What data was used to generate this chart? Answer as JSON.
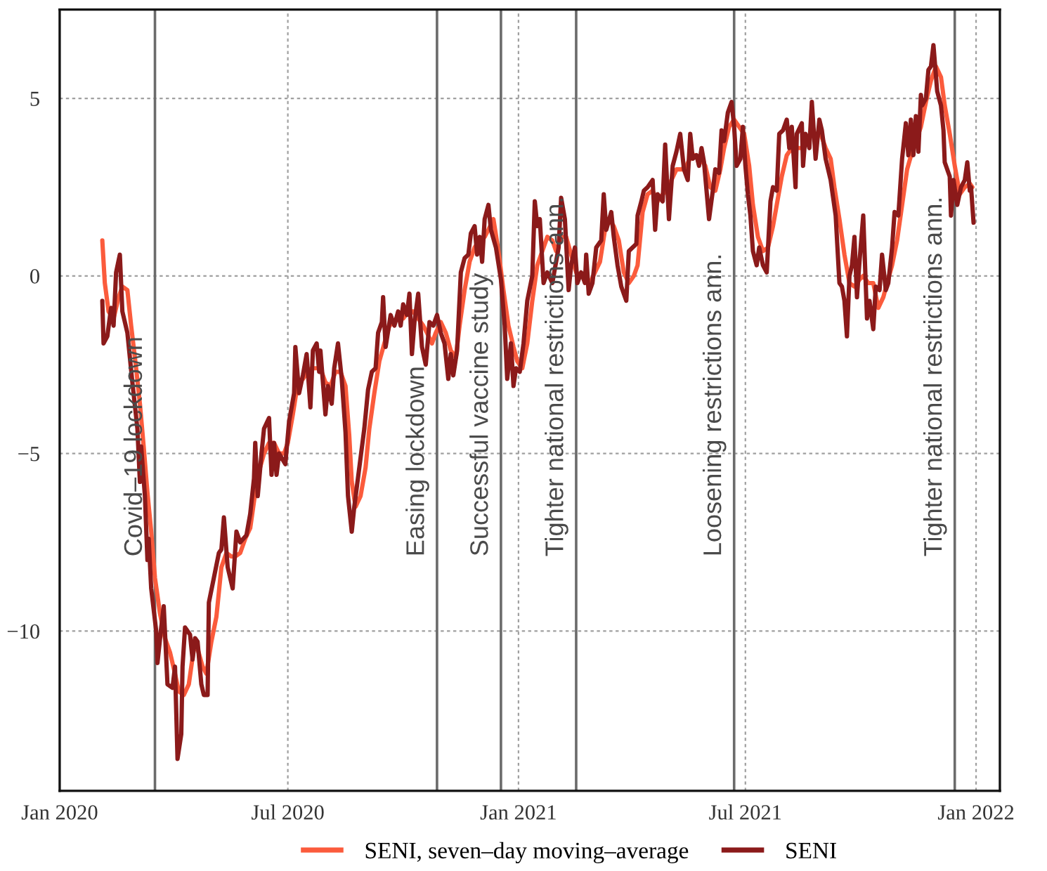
{
  "chart_data": {
    "type": "line",
    "xlim": [
      "2020-01-01",
      "2022-01-20"
    ],
    "xticks": [
      {
        "value": "2020-01-01",
        "label": "Jan 2020"
      },
      {
        "value": "2020-07-01",
        "label": "Jul 2020"
      },
      {
        "value": "2021-01-01",
        "label": "Jan 2021"
      },
      {
        "value": "2021-07-01",
        "label": "Jul 2021"
      },
      {
        "value": "2022-01-01",
        "label": "Jan 2022"
      }
    ],
    "ylim": [
      -14.5,
      7.5
    ],
    "yticks": [
      {
        "value": -10,
        "label": "−10"
      },
      {
        "value": -5,
        "label": "−5"
      },
      0,
      5
    ],
    "grid": true,
    "legend": "bottom",
    "ref_lines": [
      {
        "axis": "x",
        "value": "2020-03-17",
        "label": "Covid–19 lockdown",
        "color": "#6b6b6b"
      },
      {
        "axis": "x",
        "value": "2020-10-28",
        "label": "Easing lockdown",
        "color": "#6b6b6b"
      },
      {
        "axis": "x",
        "value": "2020-12-18",
        "label": "Successful vaccine study",
        "color": "#6b6b6b"
      },
      {
        "axis": "x",
        "value": "2021-02-16",
        "label": "Tighter national restrictions ann.",
        "color": "#6b6b6b"
      },
      {
        "axis": "x",
        "value": "2021-06-22",
        "label": "Loosening restrictions ann.",
        "color": "#6b6b6b"
      },
      {
        "axis": "x",
        "value": "2021-12-15",
        "label": "Tighter national restrictions ann.",
        "color": "#6b6b6b"
      }
    ],
    "series": [
      {
        "name": "SENI, seven–day moving–average",
        "color": "#fb5b3c",
        "x": [
          "2020-02-04",
          "2020-02-06",
          "2020-02-09",
          "2020-02-13",
          "2020-02-17",
          "2020-02-20",
          "2020-02-24",
          "2020-02-27",
          "2020-03-02",
          "2020-03-05",
          "2020-03-08",
          "2020-03-11",
          "2020-03-14",
          "2020-03-17",
          "2020-03-21",
          "2020-03-25",
          "2020-03-29",
          "2020-04-02",
          "2020-04-05",
          "2020-04-09",
          "2020-04-13",
          "2020-04-17",
          "2020-04-20",
          "2020-04-24",
          "2020-04-27",
          "2020-05-01",
          "2020-05-05",
          "2020-05-09",
          "2020-05-13",
          "2020-05-17",
          "2020-05-20",
          "2020-05-24",
          "2020-05-28",
          "2020-06-01",
          "2020-06-05",
          "2020-06-08",
          "2020-06-12",
          "2020-06-16",
          "2020-06-20",
          "2020-06-24",
          "2020-06-28",
          "2020-07-01",
          "2020-07-05",
          "2020-07-09",
          "2020-07-13",
          "2020-07-17",
          "2020-07-20",
          "2020-07-24",
          "2020-07-27",
          "2020-07-31",
          "2020-08-04",
          "2020-08-08",
          "2020-08-12",
          "2020-08-16",
          "2020-08-19",
          "2020-08-21",
          "2020-08-24",
          "2020-08-28",
          "2020-09-01",
          "2020-09-04",
          "2020-09-08",
          "2020-09-12",
          "2020-09-16",
          "2020-09-20",
          "2020-09-24",
          "2020-09-27",
          "2020-10-01",
          "2020-10-05",
          "2020-10-09",
          "2020-10-13",
          "2020-10-17",
          "2020-10-20",
          "2020-10-24",
          "2020-10-27",
          "2020-10-31",
          "2020-11-04",
          "2020-11-08",
          "2020-11-12",
          "2020-11-15",
          "2020-11-19",
          "2020-11-23",
          "2020-11-27",
          "2020-12-01",
          "2020-12-05",
          "2020-12-08",
          "2020-12-12",
          "2020-12-16",
          "2020-12-20",
          "2020-12-24",
          "2020-12-28",
          "2020-12-31",
          "2021-01-04",
          "2021-01-08",
          "2021-01-12",
          "2021-01-16",
          "2021-01-20",
          "2021-01-24",
          "2021-01-28",
          "2021-01-31",
          "2021-02-04",
          "2021-02-08",
          "2021-02-12",
          "2021-02-16",
          "2021-02-20",
          "2021-02-23",
          "2021-02-27",
          "2021-03-03",
          "2021-03-07",
          "2021-03-11",
          "2021-03-14",
          "2021-03-18",
          "2021-03-22",
          "2021-03-26",
          "2021-03-30",
          "2021-04-03",
          "2021-04-06",
          "2021-04-10",
          "2021-04-14",
          "2021-04-18",
          "2021-04-22",
          "2021-04-26",
          "2021-04-29",
          "2021-05-03",
          "2021-05-07",
          "2021-05-11",
          "2021-05-15",
          "2021-05-19",
          "2021-05-22",
          "2021-05-26",
          "2021-05-30",
          "2021-06-03",
          "2021-06-07",
          "2021-06-11",
          "2021-06-14",
          "2021-06-18",
          "2021-06-22",
          "2021-06-26",
          "2021-06-30",
          "2021-07-04",
          "2021-07-07",
          "2021-07-11",
          "2021-07-15",
          "2021-07-19",
          "2021-07-23",
          "2021-07-26",
          "2021-07-30",
          "2021-08-03",
          "2021-08-07",
          "2021-08-11",
          "2021-08-15",
          "2021-08-18",
          "2021-08-22",
          "2021-08-26",
          "2021-08-30",
          "2021-09-03",
          "2021-09-07",
          "2021-09-10",
          "2021-09-14",
          "2021-09-18",
          "2021-09-22",
          "2021-09-26",
          "2021-09-30",
          "2021-10-03",
          "2021-10-07",
          "2021-10-11",
          "2021-10-15",
          "2021-10-19",
          "2021-10-22",
          "2021-10-26",
          "2021-10-30",
          "2021-11-03",
          "2021-11-07",
          "2021-11-11",
          "2021-11-14",
          "2021-11-18",
          "2021-11-22",
          "2021-11-26",
          "2021-11-30",
          "2021-12-04",
          "2021-12-07",
          "2021-12-11",
          "2021-12-15",
          "2021-12-19",
          "2021-12-23",
          "2021-12-27",
          "2021-12-29"
        ],
        "values": [
          1.0,
          -0.2,
          -1.0,
          -1.2,
          -0.6,
          -0.3,
          -0.4,
          -1.4,
          -2.6,
          -3.6,
          -4.8,
          -6.1,
          -7.2,
          -8.5,
          -9.5,
          -10.2,
          -10.6,
          -11.2,
          -11.7,
          -11.8,
          -11.5,
          -10.5,
          -10.5,
          -11.0,
          -11.2,
          -10.3,
          -9.6,
          -8.2,
          -7.8,
          -7.9,
          -7.9,
          -7.8,
          -7.4,
          -7.1,
          -6.1,
          -5.5,
          -5.0,
          -4.7,
          -4.7,
          -5.0,
          -5.0,
          -4.7,
          -3.9,
          -3.0,
          -2.9,
          -2.7,
          -2.6,
          -2.6,
          -2.6,
          -3.0,
          -3.1,
          -2.7,
          -2.7,
          -3.1,
          -4.5,
          -5.8,
          -6.5,
          -6.2,
          -5.4,
          -4.3,
          -3.3,
          -2.4,
          -1.9,
          -1.4,
          -1.3,
          -1.2,
          -1.2,
          -1.0,
          -1.0,
          -1.2,
          -1.4,
          -1.6,
          -1.9,
          -1.6,
          -1.3,
          -1.6,
          -2.1,
          -2.3,
          -1.4,
          -0.4,
          0.4,
          0.8,
          1.0,
          1.1,
          1.3,
          1.6,
          0.7,
          -0.4,
          -1.4,
          -2.0,
          -2.4,
          -2.6,
          -1.9,
          -0.7,
          0.3,
          0.7,
          1.1,
          1.0,
          0.7,
          1.1,
          1.1,
          0.6,
          0.1,
          0.0,
          0.0,
          -0.2,
          0.1,
          0.4,
          1.3,
          1.6,
          1.4,
          1.0,
          0.1,
          -0.2,
          0.0,
          0.3,
          1.8,
          2.3,
          2.4,
          2.1,
          2.3,
          2.4,
          2.7,
          3.0,
          3.0,
          3.1,
          3.4,
          3.4,
          3.3,
          3.1,
          2.5,
          2.4,
          3.0,
          3.6,
          4.2,
          4.4,
          4.2,
          4.0,
          3.1,
          2.0,
          1.1,
          0.7,
          0.8,
          1.4,
          2.0,
          2.8,
          3.4,
          3.6,
          3.6,
          3.6,
          3.8,
          4.0,
          4.0,
          4.0,
          3.6,
          3.3,
          2.5,
          1.6,
          0.6,
          -0.2,
          -0.3,
          -0.1,
          0.0,
          -0.2,
          -0.2,
          -0.9,
          -0.6,
          -0.2,
          0.3,
          1.0,
          2.0,
          3.0,
          3.5,
          3.8,
          4.2,
          4.9,
          5.5,
          5.9,
          5.6,
          4.8,
          4.0,
          3.1,
          2.3,
          2.5,
          2.6,
          2.5
        ]
      },
      {
        "name": "SENI",
        "color": "#8b1a1a",
        "x": [
          "2020-02-04",
          "2020-02-05",
          "2020-02-08",
          "2020-02-11",
          "2020-02-13",
          "2020-02-15",
          "2020-02-18",
          "2020-02-20",
          "2020-02-24",
          "2020-02-28",
          "2020-03-03",
          "2020-03-05",
          "2020-03-06",
          "2020-03-09",
          "2020-03-11",
          "2020-03-12",
          "2020-03-14",
          "2020-03-18",
          "2020-03-19",
          "2020-03-22",
          "2020-03-24",
          "2020-03-27",
          "2020-03-31",
          "2020-04-02",
          "2020-04-04",
          "2020-04-07",
          "2020-04-08",
          "2020-04-10",
          "2020-04-14",
          "2020-04-16",
          "2020-04-18",
          "2020-04-20",
          "2020-04-23",
          "2020-04-25",
          "2020-04-28",
          "2020-04-29",
          "2020-05-03",
          "2020-05-07",
          "2020-05-09",
          "2020-05-11",
          "2020-05-14",
          "2020-05-18",
          "2020-05-21",
          "2020-05-24",
          "2020-05-29",
          "2020-06-01",
          "2020-06-04",
          "2020-06-05",
          "2020-06-07",
          "2020-06-10",
          "2020-06-12",
          "2020-06-16",
          "2020-06-18",
          "2020-06-20",
          "2020-06-22",
          "2020-06-24",
          "2020-06-29",
          "2020-07-02",
          "2020-07-06",
          "2020-07-07",
          "2020-07-10",
          "2020-07-13",
          "2020-07-16",
          "2020-07-19",
          "2020-07-21",
          "2020-07-24",
          "2020-07-26",
          "2020-07-27",
          "2020-07-31",
          "2020-08-02",
          "2020-08-05",
          "2020-08-07",
          "2020-08-10",
          "2020-08-13",
          "2020-08-16",
          "2020-08-18",
          "2020-08-21",
          "2020-08-23",
          "2020-08-27",
          "2020-08-31",
          "2020-09-03",
          "2020-09-06",
          "2020-09-09",
          "2020-09-11",
          "2020-09-14",
          "2020-09-15",
          "2020-09-17",
          "2020-09-21",
          "2020-09-24",
          "2020-09-27",
          "2020-09-29",
          "2020-10-01",
          "2020-10-04",
          "2020-10-06",
          "2020-10-08",
          "2020-10-10",
          "2020-10-13",
          "2020-10-16",
          "2020-10-19",
          "2020-10-22",
          "2020-10-25",
          "2020-10-28",
          "2020-10-31",
          "2020-11-03",
          "2020-11-06",
          "2020-11-08",
          "2020-11-10",
          "2020-11-13",
          "2020-11-16",
          "2020-11-19",
          "2020-11-22",
          "2020-11-24",
          "2020-11-27",
          "2020-11-29",
          "2020-12-01",
          "2020-12-03",
          "2020-12-05",
          "2020-12-08",
          "2020-12-10",
          "2020-12-14",
          "2020-12-18",
          "2020-12-21",
          "2020-12-23",
          "2020-12-26",
          "2020-12-28",
          "2020-12-30",
          "2021-01-02",
          "2021-01-05",
          "2021-01-08",
          "2021-01-12",
          "2021-01-14",
          "2021-01-16",
          "2021-01-18",
          "2021-01-21",
          "2021-01-24",
          "2021-01-28",
          "2021-01-31",
          "2021-02-02",
          "2021-02-04",
          "2021-02-07",
          "2021-02-10",
          "2021-02-12",
          "2021-02-15",
          "2021-02-17",
          "2021-02-20",
          "2021-02-23",
          "2021-02-24",
          "2021-02-26",
          "2021-03-01",
          "2021-03-04",
          "2021-03-08",
          "2021-03-10",
          "2021-03-12",
          "2021-03-16",
          "2021-03-18",
          "2021-03-21",
          "2021-03-24",
          "2021-03-28",
          "2021-03-30",
          "2021-04-05",
          "2021-04-06",
          "2021-04-09",
          "2021-04-11",
          "2021-04-14",
          "2021-04-18",
          "2021-04-20",
          "2021-04-22",
          "2021-04-26",
          "2021-04-28",
          "2021-05-01",
          "2021-05-04",
          "2021-05-07",
          "2021-05-10",
          "2021-05-13",
          "2021-05-16",
          "2021-05-18",
          "2021-05-20",
          "2021-05-23",
          "2021-05-25",
          "2021-05-27",
          "2021-05-29",
          "2021-05-31",
          "2021-06-02",
          "2021-06-05",
          "2021-06-07",
          "2021-06-10",
          "2021-06-12",
          "2021-06-14",
          "2021-06-17",
          "2021-06-20",
          "2021-06-22",
          "2021-06-24",
          "2021-06-27",
          "2021-06-29",
          "2021-07-01",
          "2021-07-03",
          "2021-07-05",
          "2021-07-07",
          "2021-07-10",
          "2021-07-12",
          "2021-07-15",
          "2021-07-18",
          "2021-07-21",
          "2021-07-23",
          "2021-07-26",
          "2021-07-28",
          "2021-07-31",
          "2021-08-03",
          "2021-08-05",
          "2021-08-07",
          "2021-08-10",
          "2021-08-11",
          "2021-08-15",
          "2021-08-16",
          "2021-08-18",
          "2021-08-21",
          "2021-08-23",
          "2021-08-26",
          "2021-08-29",
          "2021-08-31",
          "2021-09-03",
          "2021-09-07",
          "2021-09-09",
          "2021-09-11",
          "2021-09-14",
          "2021-09-16",
          "2021-09-18",
          "2021-09-20",
          "2021-09-22",
          "2021-09-24",
          "2021-09-26",
          "2021-09-28",
          "2021-09-30",
          "2021-10-03",
          "2021-10-06",
          "2021-10-08",
          "2021-10-11",
          "2021-10-13",
          "2021-10-16",
          "2021-10-18",
          "2021-10-21",
          "2021-10-23",
          "2021-10-26",
          "2021-10-28",
          "2021-10-31",
          "2021-11-03",
          "2021-11-06",
          "2021-11-08",
          "2021-11-10",
          "2021-11-12",
          "2021-11-14",
          "2021-11-16",
          "2021-11-18",
          "2021-11-19",
          "2021-11-22",
          "2021-11-24",
          "2021-11-26",
          "2021-11-28",
          "2021-12-01",
          "2021-12-04",
          "2021-12-06",
          "2021-12-07",
          "2021-12-11",
          "2021-12-12",
          "2021-12-14",
          "2021-12-17",
          "2021-12-20",
          "2021-12-23",
          "2021-12-25",
          "2021-12-27",
          "2021-12-28",
          "2021-12-30"
        ],
        "values": [
          -0.7,
          -1.9,
          -1.7,
          -0.9,
          -1.4,
          0.1,
          0.6,
          -1.0,
          -1.6,
          -3.0,
          -4.3,
          -5.8,
          -4.8,
          -6.2,
          -8.0,
          -7.4,
          -8.8,
          -10.0,
          -10.9,
          -9.9,
          -9.3,
          -11.5,
          -11.6,
          -11.0,
          -13.6,
          -12.9,
          -11.0,
          -9.9,
          -10.1,
          -10.8,
          -10.2,
          -10.3,
          -11.5,
          -11.8,
          -11.8,
          -9.2,
          -8.5,
          -7.8,
          -7.7,
          -6.8,
          -8.2,
          -8.8,
          -7.2,
          -7.5,
          -7.3,
          -6.7,
          -5.7,
          -4.7,
          -6.2,
          -5.0,
          -4.3,
          -4.0,
          -5.6,
          -4.7,
          -5.6,
          -5.0,
          -5.3,
          -4.1,
          -3.3,
          -2.0,
          -3.3,
          -2.8,
          -2.2,
          -3.7,
          -2.1,
          -1.9,
          -2.7,
          -2.1,
          -3.9,
          -3.1,
          -3.6,
          -2.6,
          -1.9,
          -2.9,
          -4.4,
          -6.2,
          -7.2,
          -6.5,
          -5.4,
          -4.3,
          -3.2,
          -2.7,
          -2.6,
          -1.6,
          -1.3,
          -0.6,
          -2.0,
          -1.1,
          -1.4,
          -1.0,
          -1.4,
          -0.8,
          -1.1,
          -0.5,
          -2.2,
          -1.3,
          -0.5,
          -2.0,
          -2.5,
          -1.3,
          -1.4,
          -1.1,
          -1.6,
          -1.9,
          -2.9,
          -2.2,
          -2.8,
          -2.1,
          0.1,
          0.5,
          0.6,
          1.2,
          1.4,
          0.6,
          1.1,
          0.4,
          1.6,
          2.0,
          1.3,
          0.8,
          -0.1,
          -1.4,
          -2.9,
          -1.9,
          -3.1,
          -2.6,
          -2.7,
          -1.9,
          -0.7,
          0.0,
          2.1,
          1.4,
          1.6,
          -0.2,
          0.1,
          -0.2,
          0.4,
          0.8,
          2.2,
          1.6,
          -0.4,
          0.3,
          0.8,
          -0.2,
          0.1,
          -0.2,
          0.6,
          -0.5,
          -0.2,
          0.8,
          1.0,
          2.3,
          1.3,
          1.8,
          1.1,
          0.3,
          -0.3,
          -0.7,
          0.7,
          0.9,
          1.7,
          2.1,
          2.4,
          2.5,
          2.7,
          1.3,
          2.3,
          2.1,
          3.7,
          1.6,
          3.1,
          3.5,
          4.0,
          3.0,
          2.7,
          4.0,
          3.3,
          3.4,
          3.1,
          3.6,
          3.2,
          2.4,
          1.6,
          2.4,
          3.0,
          2.9,
          4.1,
          3.8,
          4.6,
          4.9,
          4.2,
          3.1,
          3.3,
          4.2,
          3.1,
          2.3,
          1.7,
          0.7,
          0.3,
          0.8,
          0.3,
          0.1,
          2.1,
          2.5,
          2.4,
          4.0,
          4.1,
          4.4,
          3.6,
          4.2,
          2.5,
          4.0,
          4.3,
          3.1,
          4.0,
          3.6,
          4.9,
          3.3,
          4.4,
          4.1,
          3.3,
          2.7,
          2.2,
          1.7,
          -0.2,
          -0.3,
          -0.7,
          -1.7,
          0.0,
          0.3,
          1.1,
          -0.6,
          0.4,
          1.7,
          -1.2,
          -0.7,
          -1.5,
          -0.3,
          -0.4,
          0.6,
          -0.4,
          -0.2,
          0.8,
          1.8,
          1.7,
          3.3,
          4.3,
          3.4,
          4.4,
          3.4,
          4.5,
          3.5,
          5.1,
          4.8,
          5.0,
          5.8,
          5.9,
          6.5,
          5.2,
          4.8,
          4.1,
          3.2,
          2.8,
          1.7,
          2.7,
          2.0,
          2.5,
          2.7,
          3.2,
          2.4,
          2.5,
          1.5
        ]
      }
    ]
  }
}
